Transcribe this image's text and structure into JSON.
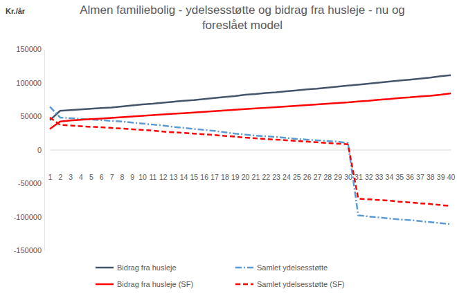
{
  "chart_data": {
    "type": "line",
    "title": "Almen familiebolig - ydelsesstøtte og bidrag fra husleje - nu og\nforeslået model",
    "y_label": "Kr./år",
    "categories": [
      1,
      2,
      3,
      4,
      5,
      6,
      7,
      8,
      9,
      10,
      11,
      12,
      13,
      14,
      15,
      16,
      17,
      18,
      19,
      20,
      21,
      22,
      23,
      24,
      25,
      26,
      27,
      28,
      29,
      30,
      31,
      32,
      33,
      34,
      35,
      36,
      37,
      38,
      39,
      40
    ],
    "series": [
      {
        "name": "Bidrag fra husleje",
        "color": "#44546a",
        "line_style": "solid",
        "values": [
          44000,
          58000,
          59000,
          60000,
          61000,
          62000,
          63000,
          64500,
          66000,
          67500,
          68500,
          70000,
          71500,
          73000,
          74000,
          75500,
          77000,
          78500,
          80000,
          82000,
          83000,
          84500,
          85500,
          87000,
          88500,
          90000,
          91000,
          92500,
          94000,
          95500,
          97000,
          98500,
          100000,
          101500,
          103000,
          104500,
          106000,
          107500,
          109500,
          111000
        ]
      },
      {
        "name": "Samlet ydelsesstøtte",
        "color": "#5b9bd5",
        "line_style": "dashdot",
        "values": [
          64000,
          48000,
          47000,
          46000,
          45000,
          44000,
          43000,
          42000,
          40500,
          39000,
          37500,
          36000,
          34000,
          32500,
          31000,
          29500,
          28000,
          26000,
          24000,
          22500,
          21000,
          20000,
          19000,
          17500,
          16000,
          15000,
          14000,
          13000,
          12000,
          10000,
          -98000,
          -99500,
          -101000,
          -102500,
          -104000,
          -105000,
          -106500,
          -108000,
          -109500,
          -111000
        ]
      },
      {
        "name": "Bidrag fra husleje (SF)",
        "color": "#ff0000",
        "line_style": "solid",
        "values": [
          31000,
          42000,
          43500,
          44500,
          45500,
          46500,
          47500,
          48500,
          49500,
          50500,
          51500,
          52500,
          53500,
          54500,
          55500,
          56500,
          57500,
          58500,
          59500,
          60500,
          61500,
          62500,
          63500,
          64500,
          65500,
          66500,
          67500,
          68500,
          69500,
          70500,
          72000,
          73000,
          74500,
          75500,
          77000,
          78000,
          79500,
          80500,
          82000,
          84000
        ]
      },
      {
        "name": "Samlet ydelsesstøtte (SF)",
        "color": "#ff0000",
        "line_style": "dashed",
        "values": [
          48000,
          37000,
          36000,
          35000,
          34000,
          33500,
          32500,
          31500,
          30500,
          29500,
          28500,
          27000,
          26000,
          25000,
          24000,
          23000,
          22000,
          20500,
          19500,
          18000,
          17000,
          16000,
          15000,
          14000,
          13000,
          12000,
          11000,
          10000,
          9000,
          8000,
          -73000,
          -74000,
          -75000,
          -76000,
          -77500,
          -78500,
          -80000,
          -81000,
          -82500,
          -84000
        ]
      }
    ],
    "ylim": [
      -150000,
      150000
    ],
    "yticks": [
      -150000,
      -100000,
      -50000,
      0,
      50000,
      100000,
      150000
    ],
    "grid": false,
    "legend": "bottom"
  }
}
